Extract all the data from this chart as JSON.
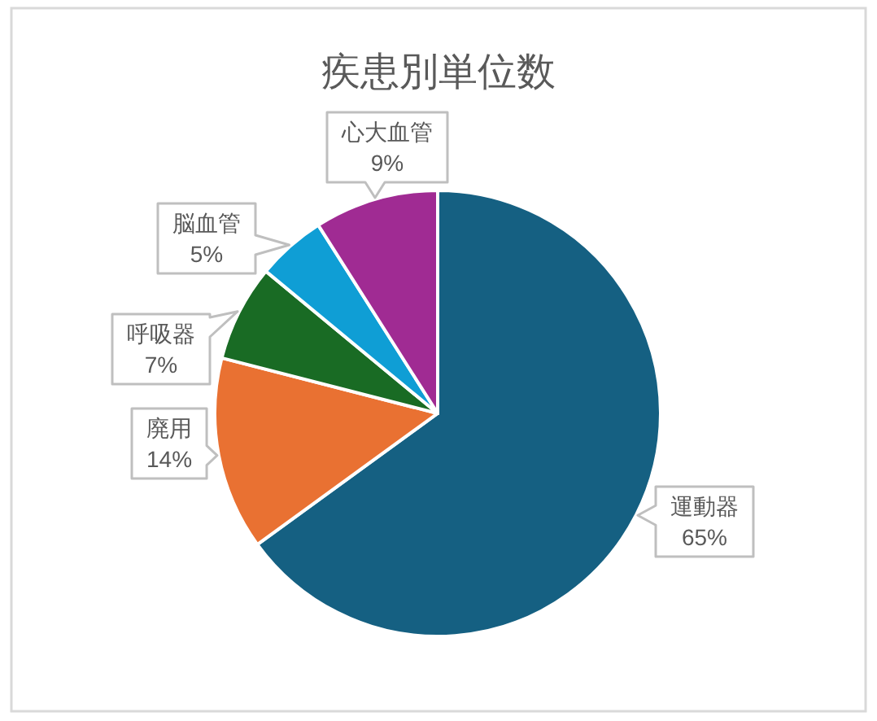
{
  "chart_data": {
    "type": "pie",
    "title": "疾患別単位数",
    "categories": [
      "運動器",
      "廃用",
      "呼吸器",
      "脳血管",
      "心大血管"
    ],
    "values": [
      65,
      14,
      7,
      5,
      9
    ],
    "colors": [
      "#156082",
      "#e97132",
      "#196b24",
      "#0f9ed5",
      "#a02b93"
    ],
    "value_labels": [
      "65%",
      "14%",
      "7%",
      "5%",
      "9%"
    ]
  }
}
